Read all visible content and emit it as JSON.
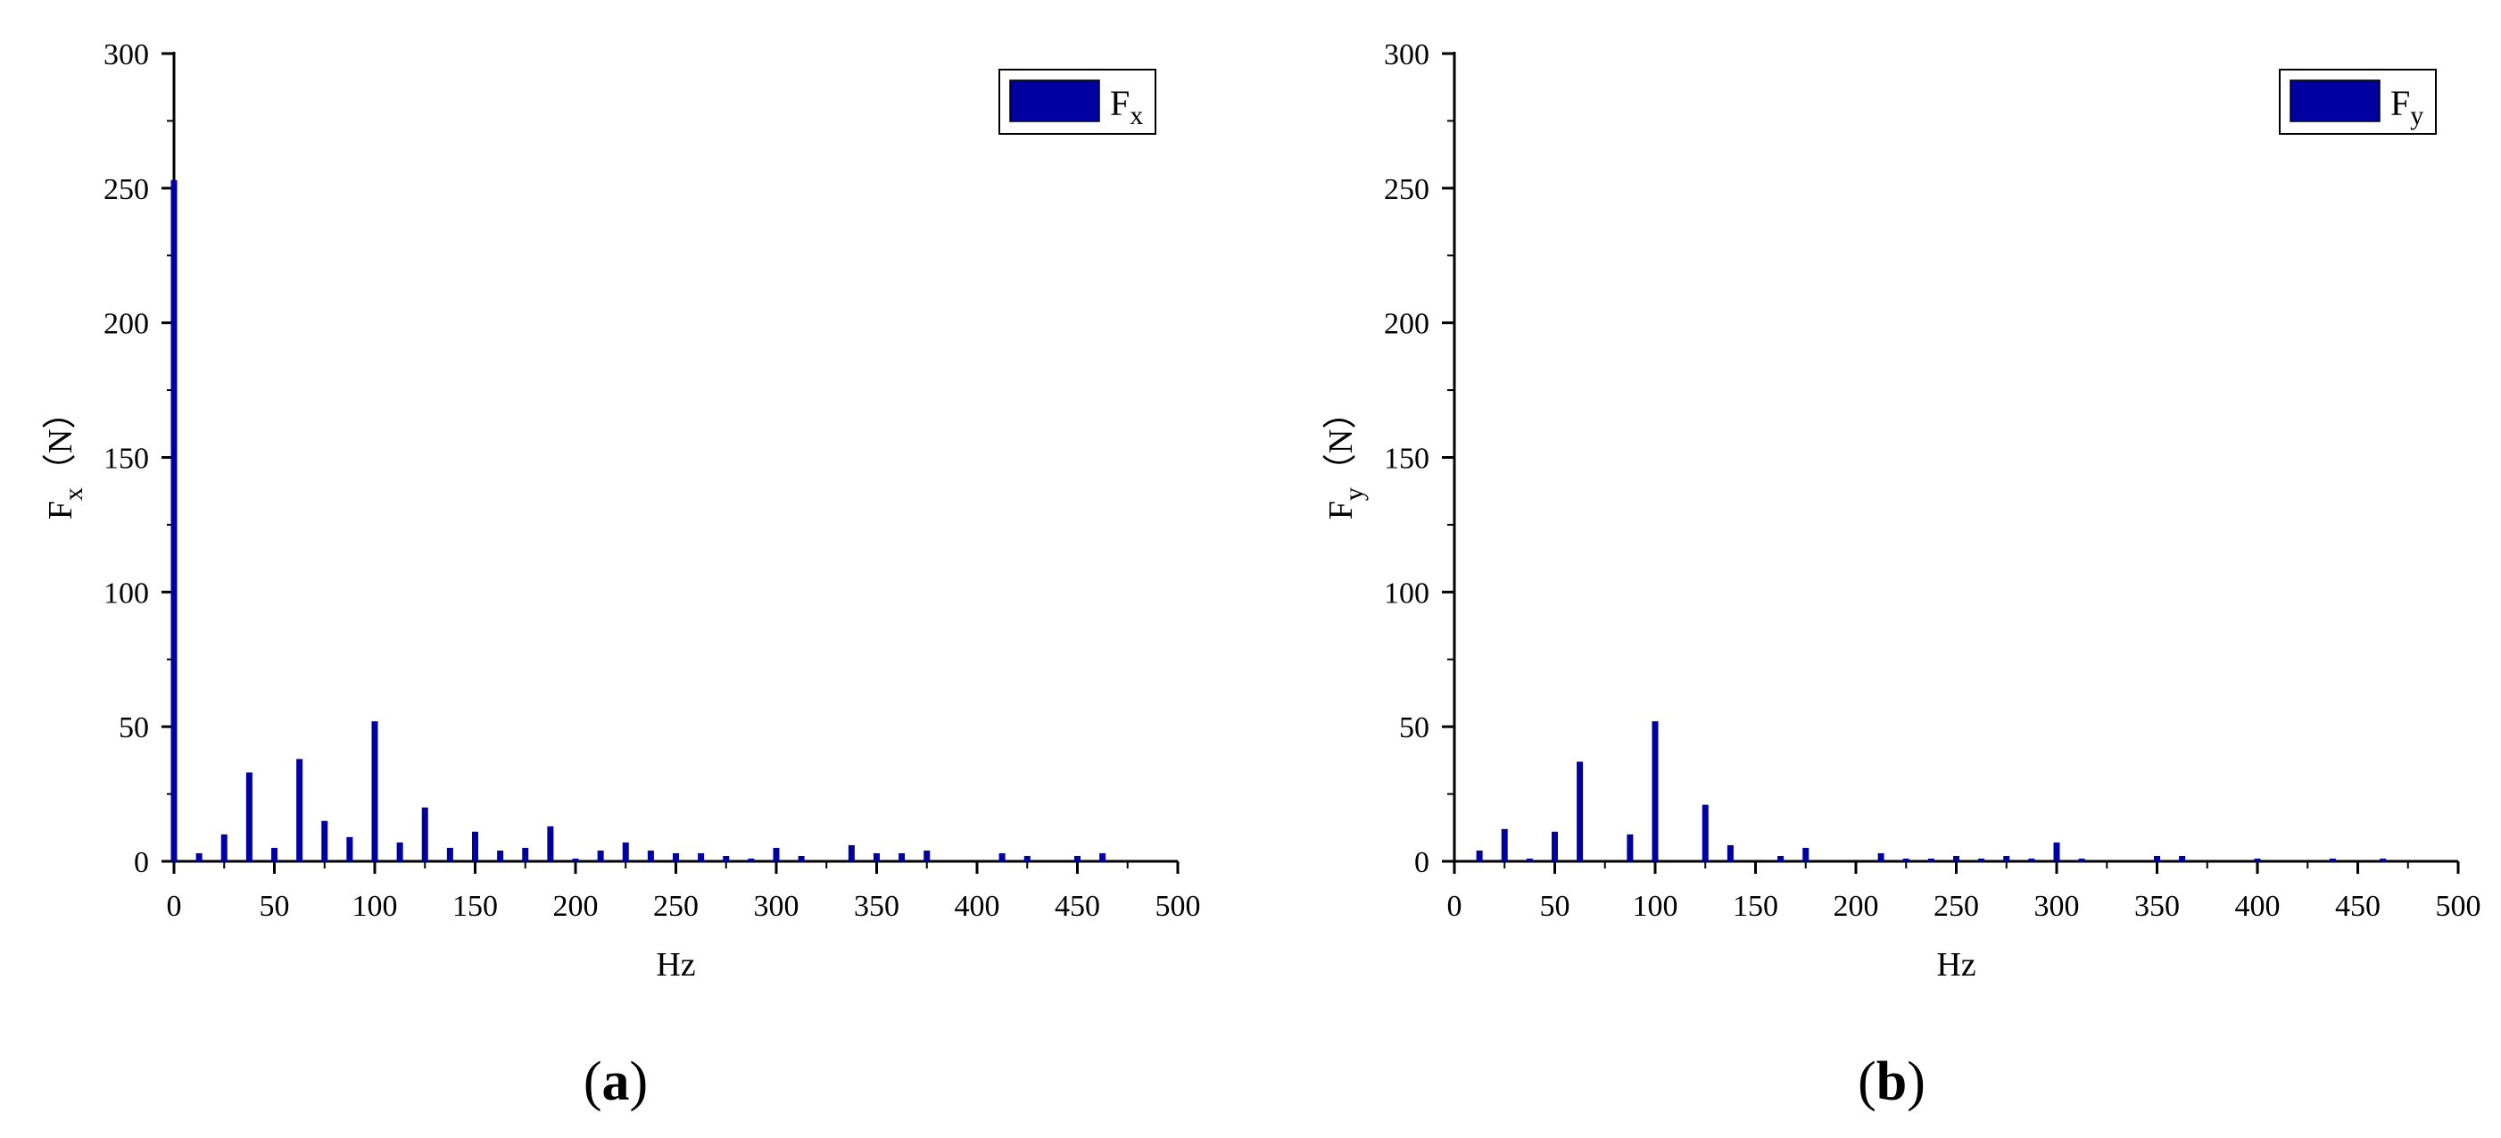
{
  "colors": {
    "bar": "#0000a0",
    "axis": "#000000",
    "background": "#ffffff"
  },
  "chart_data": [
    {
      "type": "bar",
      "panel_label": {
        "paren_open": "(",
        "letter": "a",
        "paren_close": ")"
      },
      "xlabel": "Hz",
      "ylabel": {
        "main": "F",
        "sub": "x",
        "unit": "（N）"
      },
      "legend": {
        "main": "F",
        "sub": "x",
        "position": "top-right"
      },
      "xlim": [
        0,
        500
      ],
      "ylim": [
        0,
        300
      ],
      "xticks": [
        0,
        50,
        100,
        150,
        200,
        250,
        300,
        350,
        400,
        450,
        500
      ],
      "yticks": [
        0,
        50,
        100,
        150,
        200,
        250,
        300
      ],
      "grid": false,
      "x": [
        0,
        12.5,
        25,
        37.5,
        50,
        62.5,
        75,
        87.5,
        100,
        112.5,
        125,
        137.5,
        150,
        162.5,
        175,
        187.5,
        200,
        212.5,
        225,
        237.5,
        250,
        262.5,
        275,
        287.5,
        300,
        312.5,
        337.5,
        350,
        362.5,
        375,
        412.5,
        425,
        450,
        462.5
      ],
      "values": [
        253,
        3,
        10,
        33,
        5,
        38,
        15,
        9,
        52,
        7,
        20,
        5,
        11,
        4,
        5,
        13,
        1,
        4,
        7,
        4,
        3,
        3,
        2,
        1,
        5,
        2,
        6,
        3,
        3,
        4,
        3,
        2,
        2,
        3
      ]
    },
    {
      "type": "bar",
      "panel_label": {
        "paren_open": "(",
        "letter": "b",
        "paren_close": ")"
      },
      "xlabel": "Hz",
      "ylabel": {
        "main": "F",
        "sub": "y",
        "unit": "（N）"
      },
      "legend": {
        "main": "F",
        "sub": "y",
        "position": "top-right"
      },
      "xlim": [
        0,
        500
      ],
      "ylim": [
        0,
        300
      ],
      "xticks": [
        0,
        50,
        100,
        150,
        200,
        250,
        300,
        350,
        400,
        450,
        500
      ],
      "yticks": [
        0,
        50,
        100,
        150,
        200,
        250,
        300
      ],
      "grid": false,
      "x": [
        12.5,
        25,
        37.5,
        50,
        62.5,
        87.5,
        100,
        125,
        137.5,
        162.5,
        175,
        212.5,
        225,
        237.5,
        250,
        262.5,
        275,
        287.5,
        300,
        312.5,
        350,
        362.5,
        400,
        437.5,
        462.5
      ],
      "values": [
        4,
        12,
        1,
        11,
        37,
        10,
        52,
        21,
        6,
        2,
        5,
        3,
        1,
        1,
        2,
        1,
        2,
        1,
        7,
        1,
        2,
        2,
        1,
        1,
        1
      ]
    }
  ]
}
